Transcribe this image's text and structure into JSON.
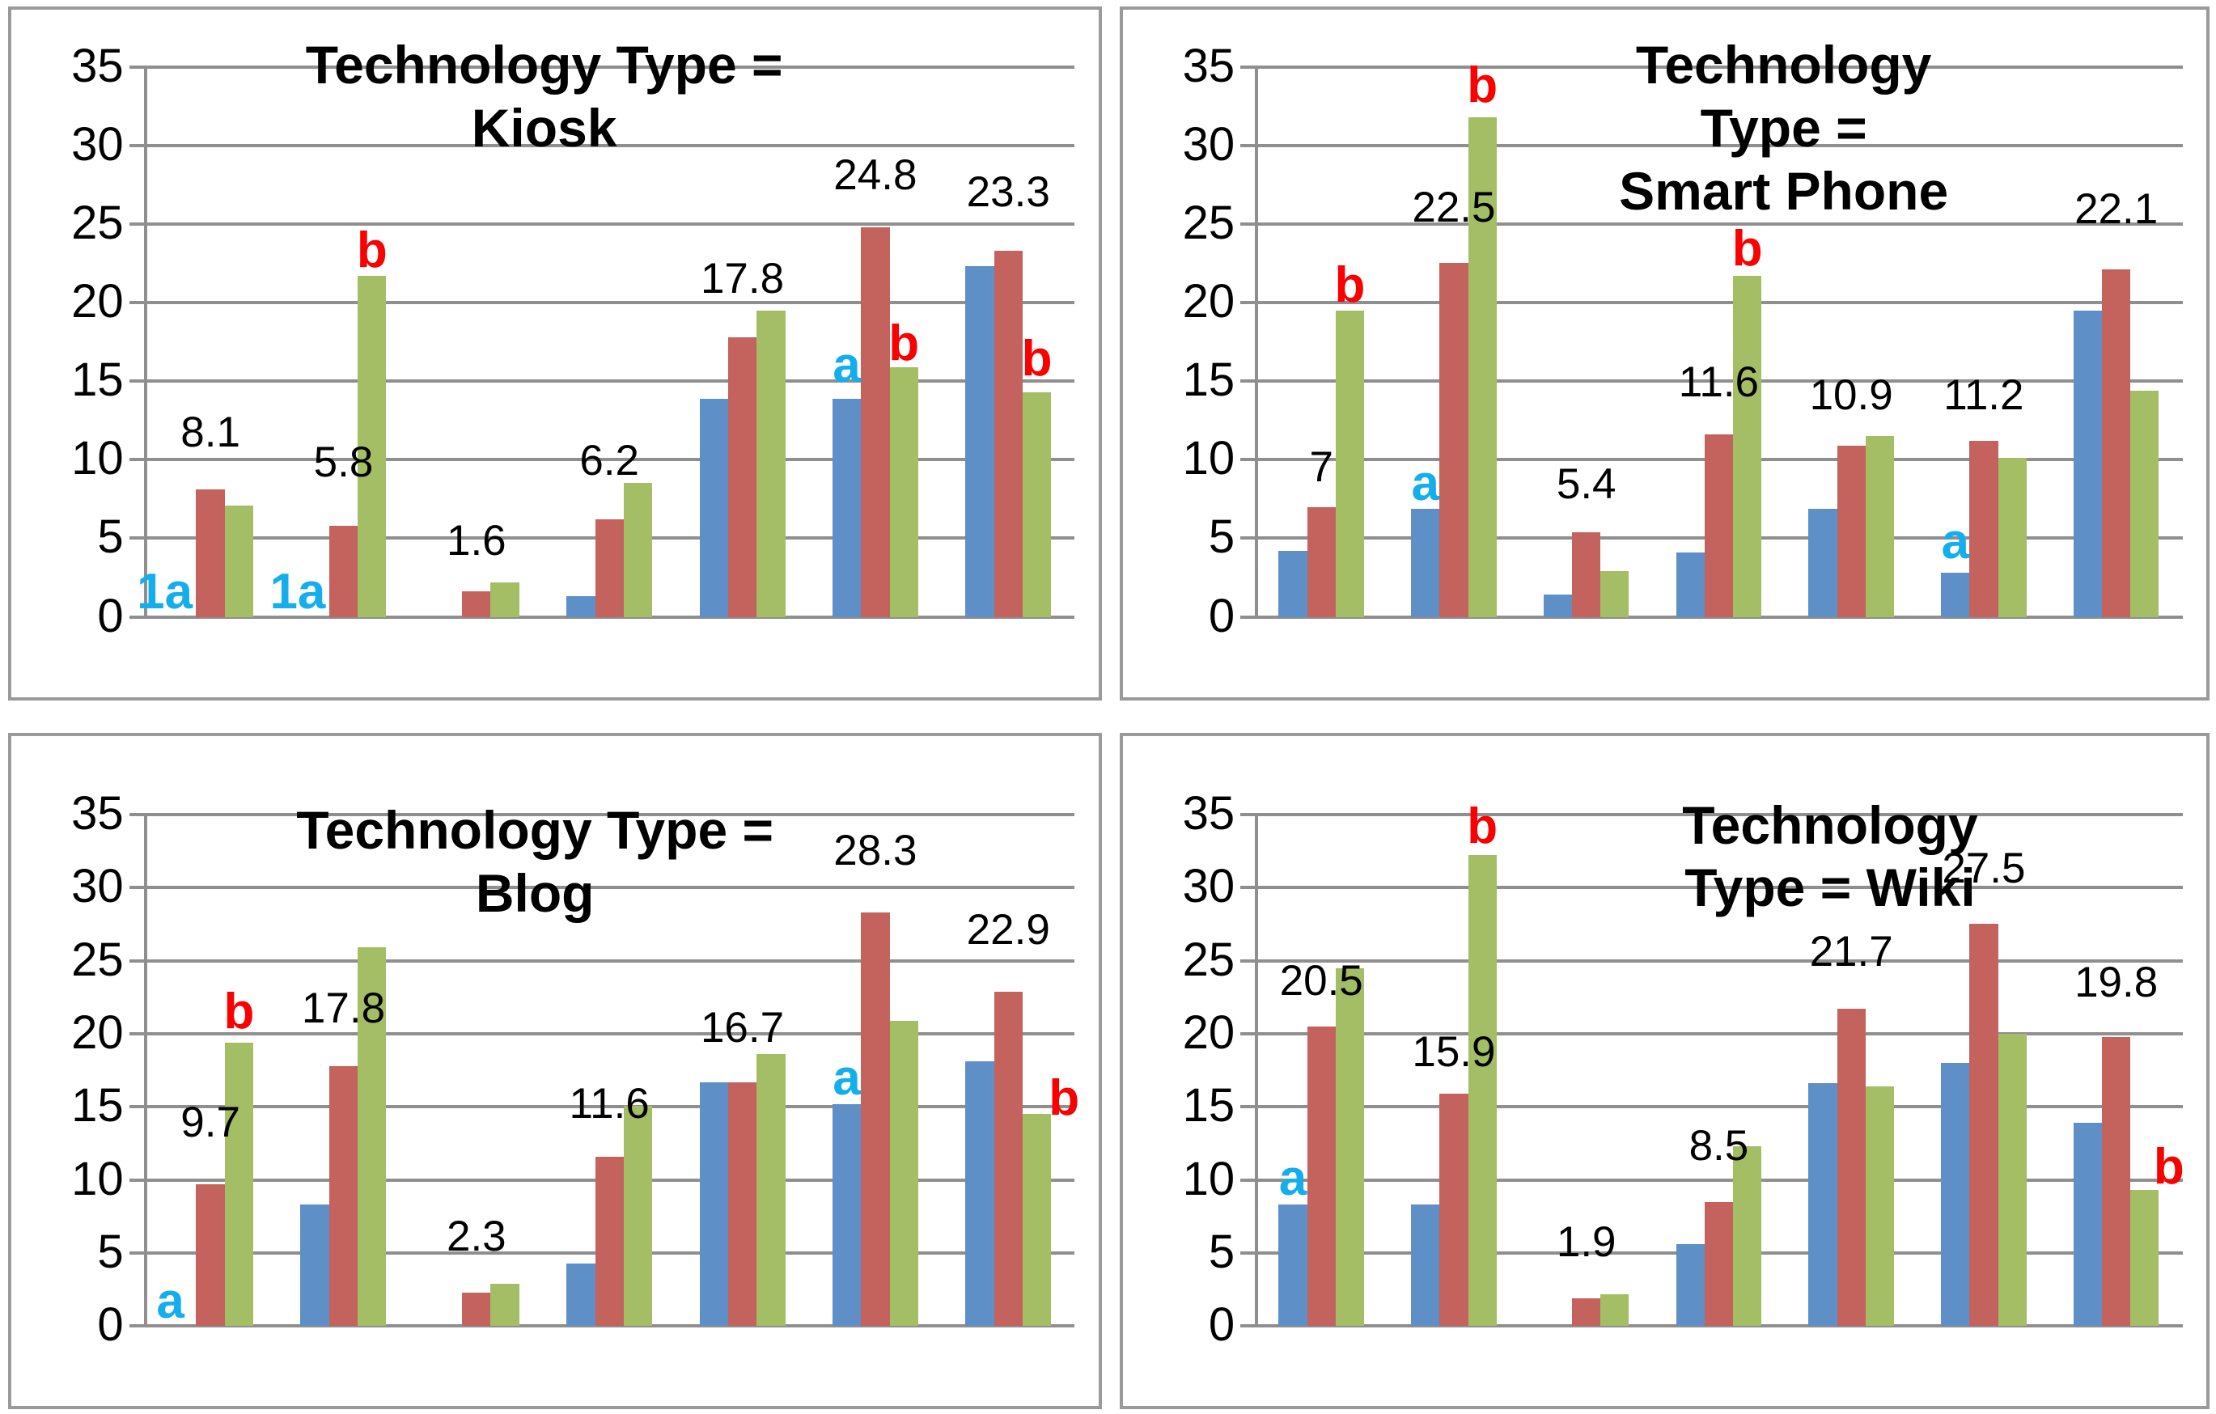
{
  "palette": {
    "bar_blue": "#5E8FC6",
    "bar_red": "#C4625D",
    "bar_green": "#A4BE66",
    "letter_cyan": "#14AEEC",
    "letter_red": "#FA0000",
    "label_black": "#000000",
    "gridline_gray": "#8F8F8F",
    "panel_border_gray": "#9A9A9A"
  },
  "chart_data": [
    {
      "id": "kiosk",
      "type": "bar",
      "title": "Technology Type = Kiosk",
      "title_lines": [
        "Technology Type = Kiosk"
      ],
      "title_x_pct": 43,
      "title_y_pct": -6,
      "ylim": [
        0,
        35
      ],
      "yticks": [
        "35",
        "30",
        "25",
        "20",
        "15",
        "10",
        "5",
        "0"
      ],
      "grid": true,
      "legend": "none",
      "categories": [
        "",
        "",
        "",
        "",
        "",
        "",
        ""
      ],
      "series": [
        {
          "key": "blue",
          "color_key": "bar_blue",
          "values": [
            0,
            0,
            0,
            1.3,
            13.9,
            13.9,
            22.3
          ]
        },
        {
          "key": "red",
          "color_key": "bar_red",
          "values": [
            8.1,
            5.8,
            1.6,
            6.2,
            17.8,
            24.8,
            23.3
          ]
        },
        {
          "key": "green",
          "color_key": "bar_green",
          "values": [
            7.1,
            21.7,
            2.2,
            8.5,
            19.5,
            15.9,
            14.3
          ]
        }
      ],
      "data_labels": {
        "series_index": 1,
        "texts": [
          "8.1",
          "5.8",
          "1.6",
          "6.2",
          "17.8",
          "24.8",
          "23.3"
        ],
        "dy": [
          2.3,
          2.7,
          1.9,
          2.4,
          2.4,
          2.0,
          2.4
        ]
      },
      "annotations": [
        {
          "slot": 0,
          "bar": 0,
          "text": "1a",
          "color_key": "letter_cyan",
          "baseline": true,
          "dx": -0.6
        },
        {
          "slot": 1,
          "bar": 0,
          "text": "1a",
          "color_key": "letter_cyan",
          "baseline": true,
          "dx": -0.6
        },
        {
          "slot": 1,
          "bar": 2,
          "text": "b",
          "color_key": "letter_red",
          "dy": 0.2
        },
        {
          "slot": 5,
          "bar": 0,
          "text": "a",
          "color_key": "letter_cyan",
          "dy": 0.7
        },
        {
          "slot": 5,
          "bar": 2,
          "text": "b",
          "color_key": "letter_red",
          "dy": 0.1
        },
        {
          "slot": 6,
          "bar": 2,
          "text": "b",
          "color_key": "letter_red",
          "dy": 0.7
        }
      ]
    },
    {
      "id": "smart-phone",
      "type": "bar",
      "title": "Technology Type = Smart Phone",
      "title_lines": [
        "Technology Type =",
        "Smart Phone"
      ],
      "title_x_pct": 57,
      "title_y_pct": -6,
      "ylim": [
        0,
        35
      ],
      "yticks": [
        "35",
        "30",
        "25",
        "20",
        "15",
        "10",
        "5",
        "0"
      ],
      "grid": true,
      "legend": "none",
      "categories": [
        "",
        "",
        "",
        "",
        "",
        "",
        ""
      ],
      "series": [
        {
          "key": "blue",
          "color_key": "bar_blue",
          "values": [
            4.2,
            6.9,
            1.4,
            4.1,
            6.9,
            2.8,
            19.5
          ]
        },
        {
          "key": "red",
          "color_key": "bar_red",
          "values": [
            7,
            22.5,
            5.4,
            11.6,
            10.9,
            11.2,
            22.1
          ]
        },
        {
          "key": "green",
          "color_key": "bar_green",
          "values": [
            19.5,
            31.8,
            2.9,
            21.7,
            11.5,
            10.1,
            14.4
          ]
        }
      ],
      "data_labels": {
        "series_index": 1,
        "texts": [
          "7",
          "22.5",
          "5.4",
          "11.6",
          "10.9",
          "11.2",
          "22.1"
        ],
        "dy": [
          1.2,
          2.2,
          1.7,
          2.0,
          1.9,
          1.6,
          2.5
        ]
      },
      "annotations": [
        {
          "slot": 0,
          "bar": 2,
          "text": "b",
          "color_key": "letter_red",
          "dy": 0.2
        },
        {
          "slot": 1,
          "bar": 0,
          "text": "a",
          "color_key": "letter_cyan",
          "dy": 0.2
        },
        {
          "slot": 1,
          "bar": 2,
          "text": "b",
          "color_key": "letter_red",
          "dy": 0.6
        },
        {
          "slot": 3,
          "bar": 2,
          "text": "b",
          "color_key": "letter_red",
          "dy": 0.3
        },
        {
          "slot": 5,
          "bar": 0,
          "text": "a",
          "color_key": "letter_cyan",
          "dy": 0.6
        }
      ]
    },
    {
      "id": "blog",
      "type": "bar",
      "title": "Technology Type = Blog",
      "title_lines": [
        "Technology Type = Blog"
      ],
      "title_x_pct": 42,
      "title_y_pct": -3,
      "ylim": [
        0,
        35
      ],
      "yticks": [
        "35",
        "30",
        "25",
        "20",
        "15",
        "10",
        "5",
        "0"
      ],
      "grid": true,
      "legend": "none",
      "categories": [
        "",
        "",
        "",
        "",
        "",
        "",
        ""
      ],
      "series": [
        {
          "key": "blue",
          "color_key": "bar_blue",
          "values": [
            0,
            8.3,
            0,
            4.3,
            16.7,
            15.2,
            18.1
          ]
        },
        {
          "key": "red",
          "color_key": "bar_red",
          "values": [
            9.7,
            17.8,
            2.3,
            11.6,
            16.7,
            28.3,
            22.9
          ]
        },
        {
          "key": "green",
          "color_key": "bar_green",
          "values": [
            19.4,
            25.9,
            2.9,
            15.1,
            18.6,
            20.9,
            14.5
          ]
        }
      ],
      "data_labels": {
        "series_index": 1,
        "texts": [
          "9.7",
          "17.8",
          "2.3",
          "11.6",
          "16.7",
          "28.3",
          "22.9"
        ],
        "dy": [
          2.8,
          2.5,
          2.4,
          2.2,
          2.3,
          2.8,
          2.8
        ]
      },
      "annotations": [
        {
          "slot": 0,
          "bar": 0,
          "text": "a",
          "color_key": "letter_cyan",
          "baseline": true,
          "dx": -0.4
        },
        {
          "slot": 0,
          "bar": 2,
          "text": "b",
          "color_key": "letter_red",
          "dy": 0.6
        },
        {
          "slot": 5,
          "bar": 0,
          "text": "a",
          "color_key": "letter_cyan",
          "dy": 0.3
        },
        {
          "slot": 6,
          "bar": 2,
          "text": "b",
          "color_key": "letter_red",
          "dy": -0.4,
          "dx": 0.95
        }
      ]
    },
    {
      "id": "wiki",
      "type": "bar",
      "title": "Technology Type = Wiki",
      "title_lines": [
        "Technology Type = Wiki"
      ],
      "title_x_pct": 62,
      "title_y_pct": -4,
      "ylim": [
        0,
        35
      ],
      "yticks": [
        "35",
        "30",
        "25",
        "20",
        "15",
        "10",
        "5",
        "0"
      ],
      "grid": true,
      "legend": "none",
      "categories": [
        "",
        "",
        "",
        "",
        "",
        "",
        ""
      ],
      "series": [
        {
          "key": "blue",
          "color_key": "bar_blue",
          "values": [
            8.3,
            8.3,
            0,
            5.6,
            16.6,
            18.0,
            13.9
          ]
        },
        {
          "key": "red",
          "color_key": "bar_red",
          "values": [
            20.5,
            15.9,
            1.9,
            8.5,
            21.7,
            27.5,
            19.8
          ]
        },
        {
          "key": "green",
          "color_key": "bar_green",
          "values": [
            24.5,
            32.2,
            2.2,
            12.3,
            16.4,
            20.0,
            9.3
          ]
        }
      ],
      "data_labels": {
        "series_index": 1,
        "texts": [
          "20.5",
          "15.9",
          "1.9",
          "8.5",
          "21.7",
          "27.5",
          "19.8"
        ],
        "dy": [
          1.7,
          1.4,
          2.4,
          2.4,
          2.5,
          2.4,
          2.3
        ]
      },
      "annotations": [
        {
          "slot": 0,
          "bar": 0,
          "text": "a",
          "color_key": "letter_cyan",
          "dy": 0.3
        },
        {
          "slot": 1,
          "bar": 2,
          "text": "b",
          "color_key": "letter_red",
          "dy": 0.5
        },
        {
          "slot": 6,
          "bar": 2,
          "text": "b",
          "color_key": "letter_red",
          "dy": 0.1,
          "dx": 0.85
        }
      ]
    }
  ]
}
